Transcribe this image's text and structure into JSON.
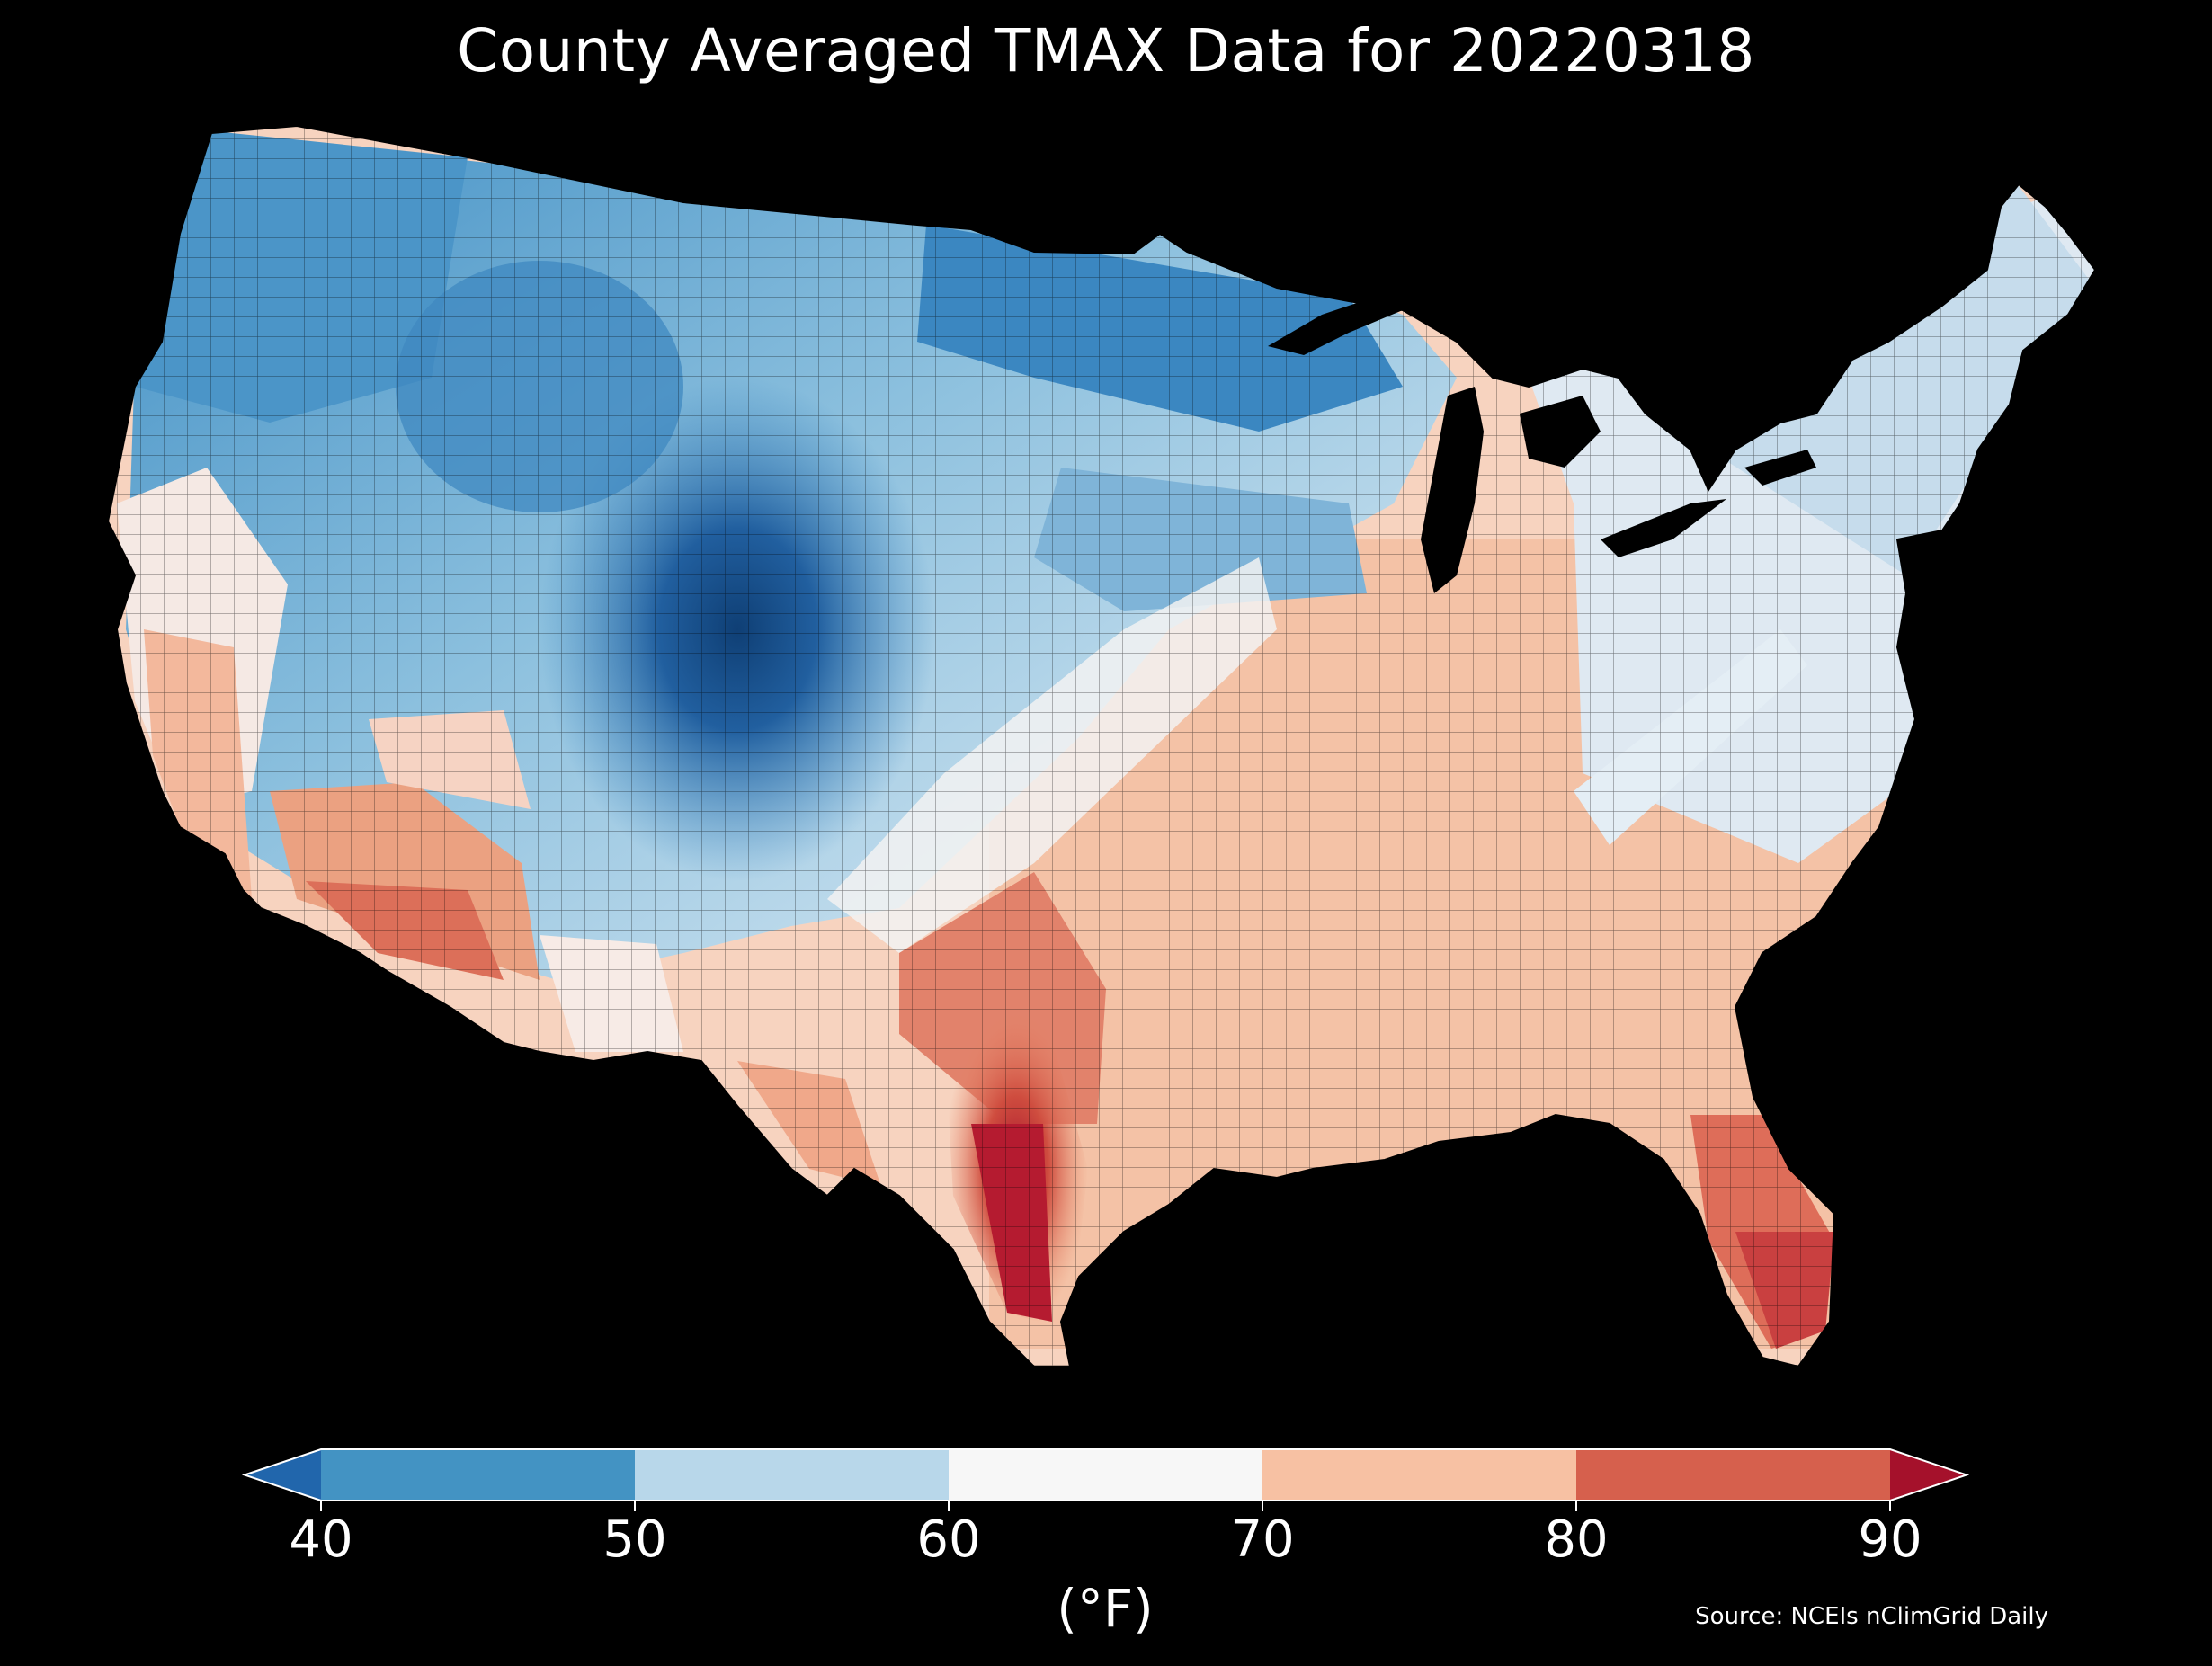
{
  "title": "County Averaged TMAX Data for 20220318",
  "colorbar": {
    "ticks": [
      "40",
      "50",
      "60",
      "70",
      "80",
      "90"
    ],
    "unit_label": "(°F)",
    "bins": [
      {
        "range": "<40",
        "color": "#2166ac"
      },
      {
        "range": "40-50",
        "color": "#4393c3"
      },
      {
        "range": "50-60",
        "color": "#b8d7ea"
      },
      {
        "range": "60-70",
        "color": "#f7f7f7"
      },
      {
        "range": "70-80",
        "color": "#f7c1a3"
      },
      {
        "range": "80-90",
        "color": "#d6604d"
      },
      {
        "range": ">90",
        "color": "#a5112b"
      }
    ]
  },
  "source": "Source: NCEIs nClimGrid Daily",
  "map": {
    "region": "Contiguous United States",
    "unit": "county",
    "background": "#000000"
  }
}
